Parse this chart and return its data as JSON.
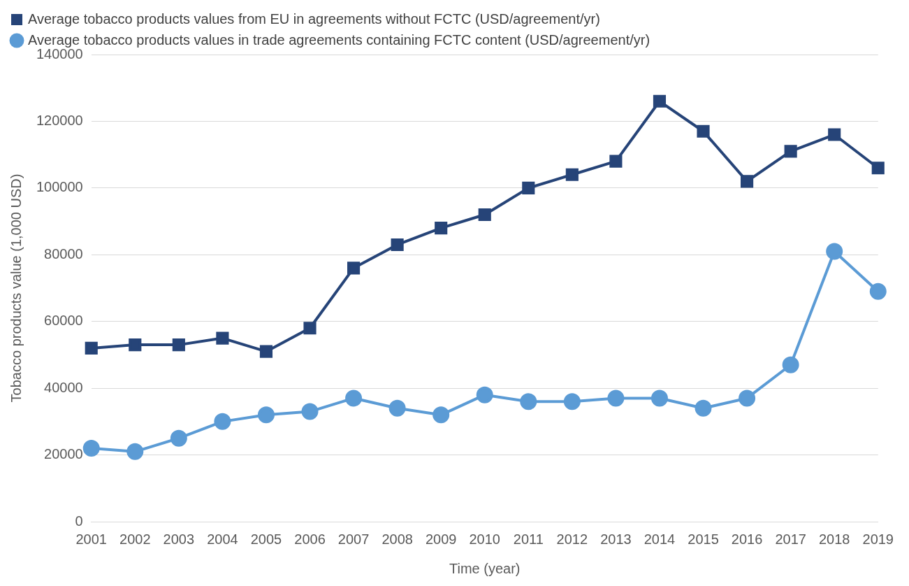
{
  "chart_data": {
    "type": "line",
    "xlabel": "Time (year)",
    "ylabel": "Tobacco products value (1,000 USD)",
    "categories": [
      "2001",
      "2002",
      "2003",
      "2004",
      "2005",
      "2006",
      "2007",
      "2008",
      "2009",
      "2010",
      "2011",
      "2012",
      "2013",
      "2014",
      "2015",
      "2016",
      "2017",
      "2018",
      "2019"
    ],
    "series": [
      {
        "name": "Average tobacco products values from EU in agreements without FCTC (USD/agreement/yr)",
        "color": "#264478",
        "marker": "square",
        "values": [
          52000,
          53000,
          53000,
          55000,
          51000,
          58000,
          76000,
          83000,
          88000,
          92000,
          100000,
          104000,
          108000,
          126000,
          117000,
          102000,
          111000,
          116000,
          106000
        ]
      },
      {
        "name": "Average tobacco products values in trade agreements containing FCTC content (USD/agreement/yr)",
        "color": "#5b9bd5",
        "marker": "circle",
        "values": [
          22000,
          21000,
          25000,
          30000,
          32000,
          33000,
          37000,
          34000,
          32000,
          38000,
          36000,
          36000,
          37000,
          37000,
          34000,
          37000,
          47000,
          81000,
          69000
        ]
      }
    ],
    "ylim": [
      0,
      140000
    ],
    "yticks": [
      0,
      20000,
      40000,
      60000,
      80000,
      100000,
      120000,
      140000
    ],
    "grid": "y",
    "legend": "top left",
    "line_style": "solid"
  }
}
